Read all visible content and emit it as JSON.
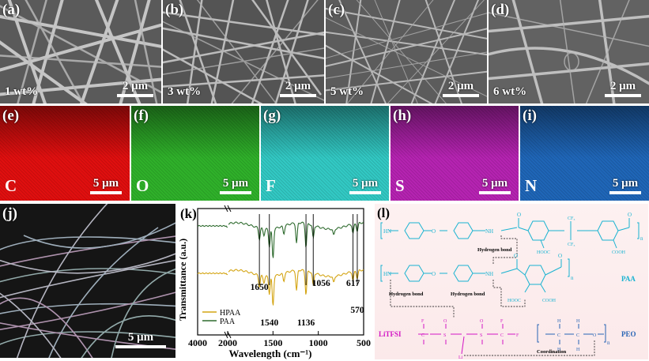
{
  "sem_panels": [
    {
      "label": "(a)",
      "content": "1 wt%",
      "scale": "2 μm"
    },
    {
      "label": "(b)",
      "content": "3 wt%",
      "scale": "2 μm"
    },
    {
      "label": "(c)",
      "content": "5 wt%",
      "scale": "2 μm"
    },
    {
      "label": "(d)",
      "content": "6 wt%",
      "scale": "2 μm"
    }
  ],
  "eds_panels": [
    {
      "label": "(e)",
      "element": "C",
      "scale": "5 μm",
      "color": "#e10f0f"
    },
    {
      "label": "(f)",
      "element": "O",
      "scale": "5 μm",
      "color": "#2fb12a"
    },
    {
      "label": "(g)",
      "element": "F",
      "scale": "5 μm",
      "color": "#32c9c4"
    },
    {
      "label": "(h)",
      "element": "S",
      "scale": "5 μm",
      "color": "#b623b2"
    },
    {
      "label": "(i)",
      "element": "N",
      "scale": "5 μm",
      "color": "#1f66b8"
    }
  ],
  "panel_j": {
    "label": "(j)",
    "scale": "5 μm"
  },
  "panel_k": {
    "label": "(k)"
  },
  "panel_l": {
    "label": "(l)"
  },
  "chart_data": {
    "type": "line",
    "xlabel": "Wavelength (cm⁻¹)",
    "ylabel": "Transmittance (a.u.)",
    "x_ticks": [
      "4000",
      "2000",
      "1500",
      "1000",
      "500"
    ],
    "x_break": [
      2000,
      4000
    ],
    "legend_position": "bottom-left",
    "series": [
      {
        "name": "HPAA",
        "color": "#d4a514"
      },
      {
        "name": "PAA",
        "color": "#2f6b2f"
      }
    ],
    "marker_lines": [
      1650,
      1540,
      1136,
      1056,
      617,
      570
    ],
    "annotations": [
      "1650",
      "1540",
      "1136",
      "1056",
      "617",
      "570"
    ]
  },
  "scheme": {
    "hbond_top": "Hydrogen bond",
    "hbond_left": "Hydrogen bond",
    "hbond_mid": "Hydrogen bond",
    "coordination": "Coordination",
    "paa": "PAA",
    "peo": "PEO",
    "litfsi": "LiTFSI",
    "li": "Li",
    "n": "n",
    "hooc": "HOOC",
    "cooh": "COOH",
    "hn": "HN",
    "nh": "NH",
    "o": "O",
    "cf3": "CF₃",
    "f": "F",
    "c": "C",
    "s": "S",
    "h": "H"
  }
}
